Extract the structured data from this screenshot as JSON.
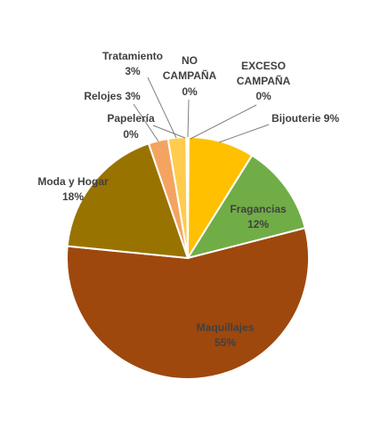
{
  "chart_data": {
    "type": "pie",
    "title": "",
    "start_angle_deg": 0,
    "direction": "clockwise",
    "slices": [
      {
        "label": "EXCESO\nCAMPAÑA",
        "percent_label": "0%",
        "value": 0.1,
        "color": "#ffc000"
      },
      {
        "label": "Bijouterie",
        "percent_label": "9%",
        "value": 8.7,
        "color": "#ffc000"
      },
      {
        "label": "Fragancias",
        "percent_label": "12%",
        "value": 12.0,
        "color": "#70ad47"
      },
      {
        "label": "Maquillajes",
        "percent_label": "55%",
        "value": 55.0,
        "color": "#9e480e"
      },
      {
        "label": "Moda y Hogar",
        "percent_label": "18%",
        "value": 18.0,
        "color": "#997300"
      },
      {
        "label": "Relojes",
        "percent_label": "3%",
        "value": 2.6,
        "color": "#f4a460"
      },
      {
        "label": "Tratamiento",
        "percent_label": "3%",
        "value": 2.4,
        "color": "#ffcc4d"
      },
      {
        "label": "Papelería",
        "percent_label": "0%",
        "value": 0.1,
        "color": "#e6b800"
      },
      {
        "label": "NO\nCAMPAÑA",
        "percent_label": "0%",
        "value": 0.1,
        "color": "#ffd966"
      }
    ]
  }
}
